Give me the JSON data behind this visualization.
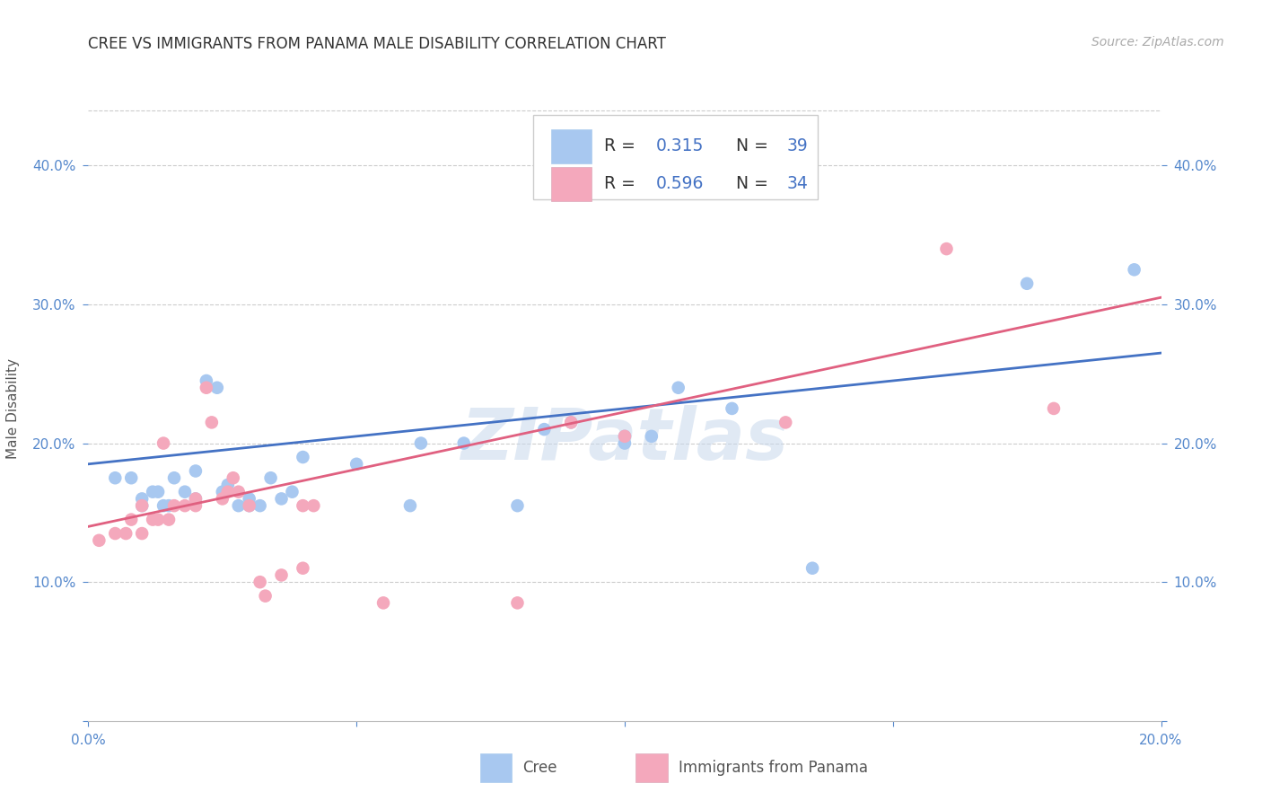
{
  "title": "CREE VS IMMIGRANTS FROM PANAMA MALE DISABILITY CORRELATION CHART",
  "source": "Source: ZipAtlas.com",
  "ylabel": "Male Disability",
  "watermark": "ZIPatlas",
  "xlim": [
    0.0,
    0.2
  ],
  "ylim": [
    0.0,
    0.45
  ],
  "xticks": [
    0.0,
    0.05,
    0.1,
    0.15,
    0.2
  ],
  "yticks": [
    0.0,
    0.1,
    0.2,
    0.3,
    0.4
  ],
  "blue_R": "0.315",
  "blue_N": "39",
  "pink_R": "0.596",
  "pink_N": "34",
  "blue_color": "#A8C8F0",
  "pink_color": "#F4A8BC",
  "blue_line_color": "#4472C4",
  "pink_line_color": "#E06080",
  "legend_text_color": "#333333",
  "legend_value_color": "#4472C4",
  "blue_scatter": [
    [
      0.005,
      0.175
    ],
    [
      0.008,
      0.175
    ],
    [
      0.01,
      0.155
    ],
    [
      0.01,
      0.16
    ],
    [
      0.012,
      0.165
    ],
    [
      0.013,
      0.165
    ],
    [
      0.014,
      0.155
    ],
    [
      0.015,
      0.155
    ],
    [
      0.016,
      0.175
    ],
    [
      0.018,
      0.165
    ],
    [
      0.02,
      0.18
    ],
    [
      0.02,
      0.16
    ],
    [
      0.022,
      0.245
    ],
    [
      0.024,
      0.24
    ],
    [
      0.025,
      0.165
    ],
    [
      0.026,
      0.17
    ],
    [
      0.028,
      0.155
    ],
    [
      0.03,
      0.155
    ],
    [
      0.03,
      0.16
    ],
    [
      0.032,
      0.155
    ],
    [
      0.034,
      0.175
    ],
    [
      0.036,
      0.16
    ],
    [
      0.038,
      0.165
    ],
    [
      0.04,
      0.19
    ],
    [
      0.05,
      0.185
    ],
    [
      0.06,
      0.155
    ],
    [
      0.062,
      0.2
    ],
    [
      0.07,
      0.2
    ],
    [
      0.08,
      0.155
    ],
    [
      0.085,
      0.21
    ],
    [
      0.09,
      0.215
    ],
    [
      0.1,
      0.205
    ],
    [
      0.1,
      0.2
    ],
    [
      0.105,
      0.205
    ],
    [
      0.11,
      0.24
    ],
    [
      0.12,
      0.225
    ],
    [
      0.135,
      0.11
    ],
    [
      0.175,
      0.315
    ],
    [
      0.195,
      0.325
    ]
  ],
  "pink_scatter": [
    [
      0.002,
      0.13
    ],
    [
      0.005,
      0.135
    ],
    [
      0.007,
      0.135
    ],
    [
      0.008,
      0.145
    ],
    [
      0.01,
      0.135
    ],
    [
      0.01,
      0.155
    ],
    [
      0.012,
      0.145
    ],
    [
      0.013,
      0.145
    ],
    [
      0.014,
      0.2
    ],
    [
      0.015,
      0.145
    ],
    [
      0.016,
      0.155
    ],
    [
      0.018,
      0.155
    ],
    [
      0.02,
      0.155
    ],
    [
      0.02,
      0.16
    ],
    [
      0.022,
      0.24
    ],
    [
      0.023,
      0.215
    ],
    [
      0.025,
      0.16
    ],
    [
      0.026,
      0.165
    ],
    [
      0.027,
      0.175
    ],
    [
      0.028,
      0.165
    ],
    [
      0.03,
      0.155
    ],
    [
      0.032,
      0.1
    ],
    [
      0.033,
      0.09
    ],
    [
      0.036,
      0.105
    ],
    [
      0.04,
      0.11
    ],
    [
      0.04,
      0.155
    ],
    [
      0.042,
      0.155
    ],
    [
      0.055,
      0.085
    ],
    [
      0.08,
      0.085
    ],
    [
      0.09,
      0.215
    ],
    [
      0.1,
      0.205
    ],
    [
      0.13,
      0.215
    ],
    [
      0.16,
      0.34
    ],
    [
      0.18,
      0.225
    ]
  ],
  "blue_line_x": [
    0.0,
    0.2
  ],
  "blue_line_y": [
    0.185,
    0.265
  ],
  "pink_line_x": [
    0.0,
    0.2
  ],
  "pink_line_y": [
    0.14,
    0.305
  ],
  "background_color": "#FFFFFF",
  "grid_color": "#CCCCCC",
  "tick_color": "#5588CC",
  "title_fontsize": 12,
  "axis_label_fontsize": 11,
  "tick_fontsize": 11,
  "source_fontsize": 10
}
